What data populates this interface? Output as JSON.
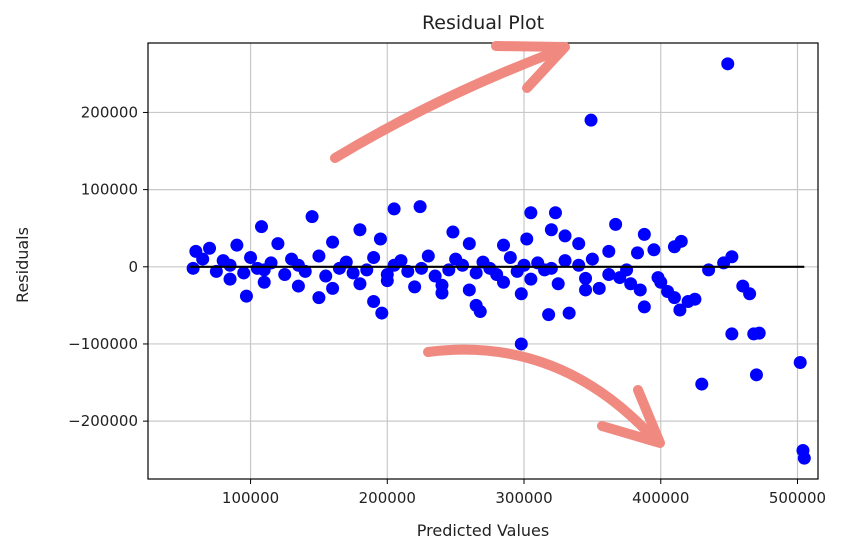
{
  "chart_data": {
    "type": "scatter",
    "title": "Residual Plot",
    "xlabel": "Predicted Values",
    "ylabel": "Residuals",
    "xlim": [
      25000,
      515000
    ],
    "ylim": [
      -275000,
      290000
    ],
    "xticks": [
      100000,
      200000,
      300000,
      400000,
      500000
    ],
    "xtick_labels": [
      "100000",
      "200000",
      "300000",
      "400000",
      "500000"
    ],
    "yticks": [
      200000,
      100000,
      0,
      -100000,
      -200000
    ],
    "ytick_labels": [
      "200000",
      "100000",
      "0",
      "−100000",
      "−200000"
    ],
    "grid": true,
    "point_color": "#0000ff",
    "reference_line": {
      "y": 0,
      "x_start": 55000,
      "x_end": 505000,
      "color": "#000000"
    },
    "annotation_color": "#f08a80",
    "points": [
      [
        449000,
        263000
      ],
      [
        349000,
        190000
      ],
      [
        205000,
        75000
      ],
      [
        224000,
        78000
      ],
      [
        305000,
        70000
      ],
      [
        323000,
        70000
      ],
      [
        145000,
        65000
      ],
      [
        367000,
        55000
      ],
      [
        415000,
        33000
      ],
      [
        388000,
        42000
      ],
      [
        108000,
        52000
      ],
      [
        180000,
        48000
      ],
      [
        248000,
        45000
      ],
      [
        320000,
        48000
      ],
      [
        330000,
        40000
      ],
      [
        340000,
        30000
      ],
      [
        302000,
        36000
      ],
      [
        410000,
        26000
      ],
      [
        452000,
        13000
      ],
      [
        395000,
        22000
      ],
      [
        362000,
        20000
      ],
      [
        383000,
        18000
      ],
      [
        60000,
        20000
      ],
      [
        70000,
        24000
      ],
      [
        90000,
        28000
      ],
      [
        120000,
        30000
      ],
      [
        160000,
        32000
      ],
      [
        195000,
        36000
      ],
      [
        260000,
        30000
      ],
      [
        285000,
        28000
      ],
      [
        65000,
        10000
      ],
      [
        80000,
        8000
      ],
      [
        100000,
        12000
      ],
      [
        115000,
        5000
      ],
      [
        130000,
        10000
      ],
      [
        150000,
        14000
      ],
      [
        170000,
        6000
      ],
      [
        190000,
        12000
      ],
      [
        210000,
        8000
      ],
      [
        230000,
        14000
      ],
      [
        250000,
        10000
      ],
      [
        270000,
        6000
      ],
      [
        290000,
        12000
      ],
      [
        310000,
        5000
      ],
      [
        330000,
        8000
      ],
      [
        350000,
        10000
      ],
      [
        75000,
        -6000
      ],
      [
        95000,
        -8000
      ],
      [
        110000,
        -4000
      ],
      [
        125000,
        -10000
      ],
      [
        140000,
        -6000
      ],
      [
        155000,
        -12000
      ],
      [
        175000,
        -8000
      ],
      [
        185000,
        -4000
      ],
      [
        200000,
        -10000
      ],
      [
        215000,
        -6000
      ],
      [
        235000,
        -12000
      ],
      [
        245000,
        -4000
      ],
      [
        265000,
        -8000
      ],
      [
        280000,
        -10000
      ],
      [
        295000,
        -6000
      ],
      [
        315000,
        -4000
      ],
      [
        58000,
        -2000
      ],
      [
        85000,
        2000
      ],
      [
        105000,
        -2000
      ],
      [
        135000,
        2000
      ],
      [
        165000,
        -2000
      ],
      [
        205000,
        2000
      ],
      [
        225000,
        -2000
      ],
      [
        255000,
        2000
      ],
      [
        275000,
        -2000
      ],
      [
        300000,
        2000
      ],
      [
        320000,
        -2000
      ],
      [
        340000,
        2000
      ],
      [
        85000,
        -16000
      ],
      [
        110000,
        -20000
      ],
      [
        135000,
        -25000
      ],
      [
        160000,
        -28000
      ],
      [
        180000,
        -22000
      ],
      [
        200000,
        -18000
      ],
      [
        220000,
        -26000
      ],
      [
        240000,
        -24000
      ],
      [
        260000,
        -30000
      ],
      [
        285000,
        -20000
      ],
      [
        305000,
        -16000
      ],
      [
        325000,
        -22000
      ],
      [
        97000,
        -38000
      ],
      [
        150000,
        -40000
      ],
      [
        190000,
        -45000
      ],
      [
        196000,
        -60000
      ],
      [
        240000,
        -34000
      ],
      [
        265000,
        -50000
      ],
      [
        268000,
        -58000
      ],
      [
        298000,
        -35000
      ],
      [
        318000,
        -62000
      ],
      [
        333000,
        -60000
      ],
      [
        345000,
        -30000
      ],
      [
        355000,
        -28000
      ],
      [
        345000,
        -15000
      ],
      [
        362000,
        -10000
      ],
      [
        370000,
        -14000
      ],
      [
        375000,
        -4000
      ],
      [
        378000,
        -22000
      ],
      [
        385000,
        -30000
      ],
      [
        388000,
        -52000
      ],
      [
        398000,
        -14000
      ],
      [
        400000,
        -20000
      ],
      [
        405000,
        -32000
      ],
      [
        410000,
        -40000
      ],
      [
        414000,
        -56000
      ],
      [
        420000,
        -45000
      ],
      [
        425000,
        -42000
      ],
      [
        435000,
        -4000
      ],
      [
        446000,
        5000
      ],
      [
        452000,
        -87000
      ],
      [
        460000,
        -25000
      ],
      [
        465000,
        -35000
      ],
      [
        468000,
        -87000
      ],
      [
        472000,
        -86000
      ],
      [
        470000,
        -140000
      ],
      [
        430000,
        -152000
      ],
      [
        298000,
        -100000
      ],
      [
        502000,
        -124000
      ],
      [
        504000,
        -238000
      ],
      [
        505000,
        -248000
      ]
    ]
  }
}
